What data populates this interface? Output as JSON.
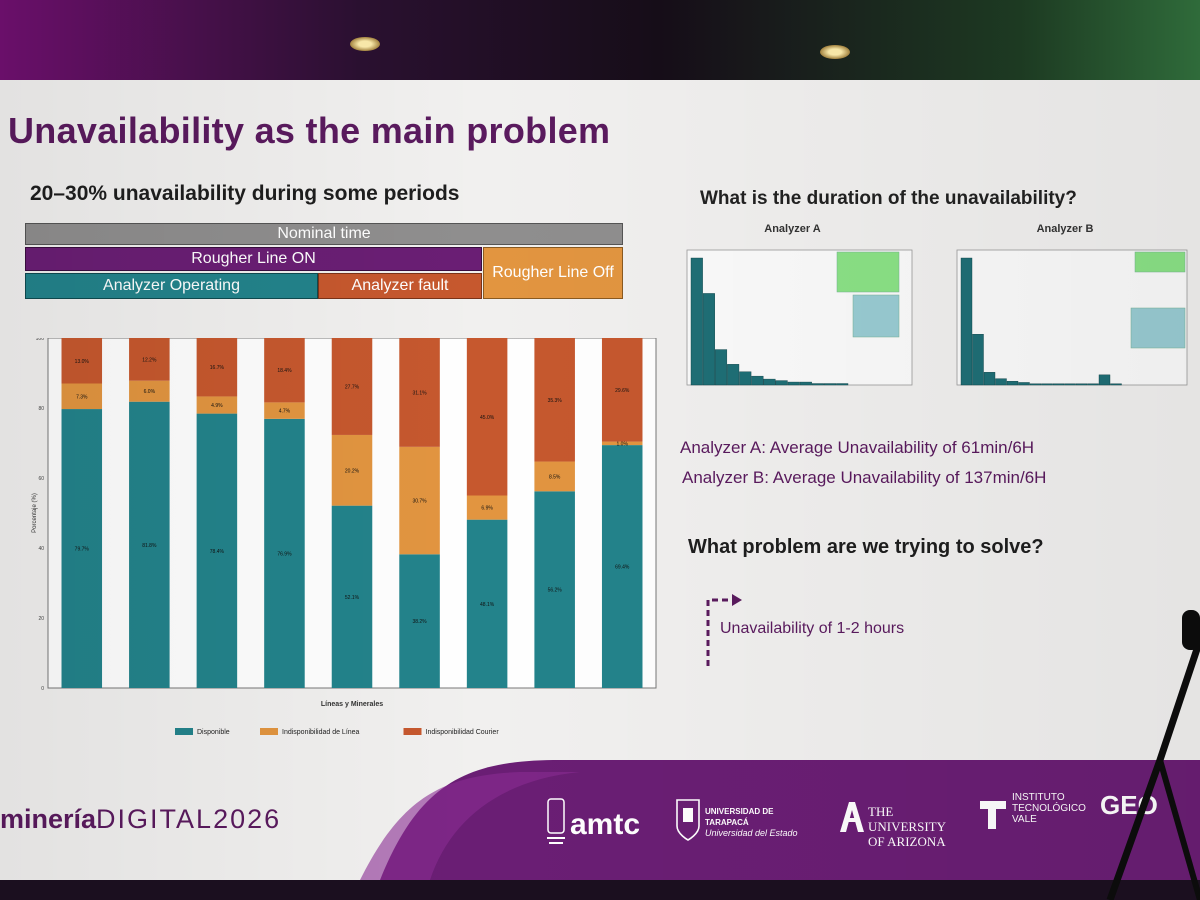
{
  "slide": {
    "title": "Unavailability as the main problem",
    "left_subtitle": "20–30% unavailability during some periods",
    "right_question": "What is the duration of the unavailability?",
    "result_a": "Analyzer A: Average Unavailability of 61min/6H",
    "result_b": "Analyzer B: Average Unavailability of 137min/6H",
    "problem_question": "What problem are we trying to solve?",
    "answer": "Unavailability of 1-2 hours"
  },
  "time_bars": {
    "nominal": "Nominal time",
    "rougher_on": "Rougher Line ON",
    "rougher_off": "Rougher Line Off",
    "analyzer_operating": "Analyzer Operating",
    "analyzer_fault": "Analyzer fault"
  },
  "colors": {
    "disponible": "#23838b",
    "linea": "#e29540",
    "courier": "#c6582e",
    "title": "#5a1a5e"
  },
  "chart_data": [
    {
      "type": "bar",
      "stacked": true,
      "xlabel": "Líneas y Minerales",
      "ylabel": "Porcentaje (%)",
      "ylim": [
        0,
        100
      ],
      "y_ticks": [
        "0",
        "20",
        "40",
        "60",
        "80",
        "100"
      ],
      "categories": [
        "",
        "",
        "",
        "",
        "",
        "",
        "",
        "",
        ""
      ],
      "series": [
        {
          "name": "Disponible",
          "color": "#23838b",
          "values": [
            79.7,
            81.8,
            78.4,
            76.9,
            52.1,
            38.2,
            48.1,
            56.2,
            69.4
          ]
        },
        {
          "name": "Indisponibilidad de Línea",
          "color": "#e29540",
          "values": [
            7.3,
            6.0,
            4.9,
            4.7,
            20.2,
            30.7,
            6.9,
            8.5,
            1.0
          ]
        },
        {
          "name": "Indisponibilidad Courier",
          "color": "#c6582e",
          "values": [
            13.0,
            12.2,
            16.7,
            18.4,
            27.7,
            31.1,
            45.0,
            35.3,
            29.6
          ]
        }
      ],
      "legend": "bottom"
    },
    {
      "type": "bar",
      "title": "Analyzer A",
      "note": "histogram",
      "values": [
        86,
        62,
        24,
        14,
        9,
        6,
        4,
        3,
        2,
        2,
        1,
        1,
        1
      ]
    },
    {
      "type": "bar",
      "title": "Analyzer B",
      "note": "histogram",
      "values": [
        100,
        40,
        10,
        5,
        3,
        2,
        1,
        1,
        1,
        1,
        1,
        1,
        8,
        1
      ]
    }
  ],
  "footer": {
    "brand_bold": "minería",
    "brand_light": "DIGITAL2026",
    "amtc": "amtc",
    "uta": "UNIVERSIDAD DE TARAPACÁ",
    "uta_sub": "Universidad del Estado",
    "ua_line1": "THE UNIVERSITY",
    "ua_line2": "OF ARIZONA",
    "itv_line1": "INSTITUTO",
    "itv_line2": "TECNOLÓGICO",
    "itv_line3": "VALE",
    "geo": "GEO"
  }
}
